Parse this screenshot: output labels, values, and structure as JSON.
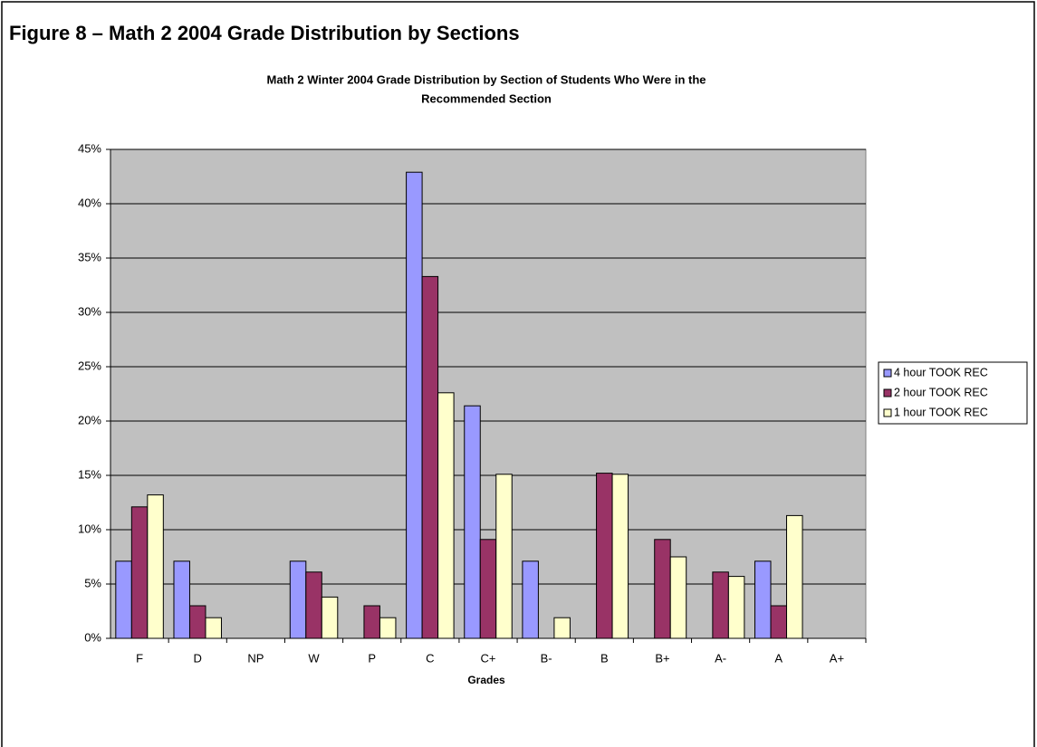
{
  "chart_data": {
    "type": "bar",
    "figure_title": "Figure 8 – Math 2 2004 Grade Distribution by Sections",
    "title": [
      "Math 2 Winter 2004 Grade Distribution by Section of Students Who Were in the",
      "Recommended Section"
    ],
    "x_label": "Grades",
    "categories": [
      "F",
      "D",
      "NP",
      "W",
      "P",
      "C",
      "C+",
      "B-",
      "B",
      "B+",
      "A-",
      "A",
      "A+"
    ],
    "series": [
      {
        "name": "4 hour TOOK REC",
        "color": "#9999ff",
        "values": [
          7.1,
          7.1,
          0,
          7.1,
          0,
          42.9,
          21.4,
          7.1,
          0,
          0,
          0,
          7.1,
          0
        ]
      },
      {
        "name": "2 hour TOOK REC",
        "color": "#993366",
        "values": [
          12.1,
          3.0,
          0,
          6.1,
          3.0,
          33.3,
          9.1,
          0,
          15.2,
          9.1,
          6.1,
          3.0,
          0
        ]
      },
      {
        "name": "1 hour TOOK REC",
        "color": "#ffffcc",
        "values": [
          13.2,
          1.9,
          0,
          3.8,
          1.9,
          22.6,
          15.1,
          1.9,
          15.1,
          7.5,
          5.7,
          11.3,
          0
        ]
      }
    ],
    "ylim": [
      0,
      45
    ],
    "yticks": [
      {
        "value": 0,
        "label": "0%"
      },
      {
        "value": 5,
        "label": "5%"
      },
      {
        "value": 10,
        "label": "10%"
      },
      {
        "value": 15,
        "label": "15%"
      },
      {
        "value": 20,
        "label": "20%"
      },
      {
        "value": 25,
        "label": "25%"
      },
      {
        "value": 30,
        "label": "30%"
      },
      {
        "value": 35,
        "label": "35%"
      },
      {
        "value": 40,
        "label": "40%"
      },
      {
        "value": 45,
        "label": "45%"
      }
    ],
    "grid": true,
    "plot_background": "#c0c0c0",
    "legend": "right"
  }
}
